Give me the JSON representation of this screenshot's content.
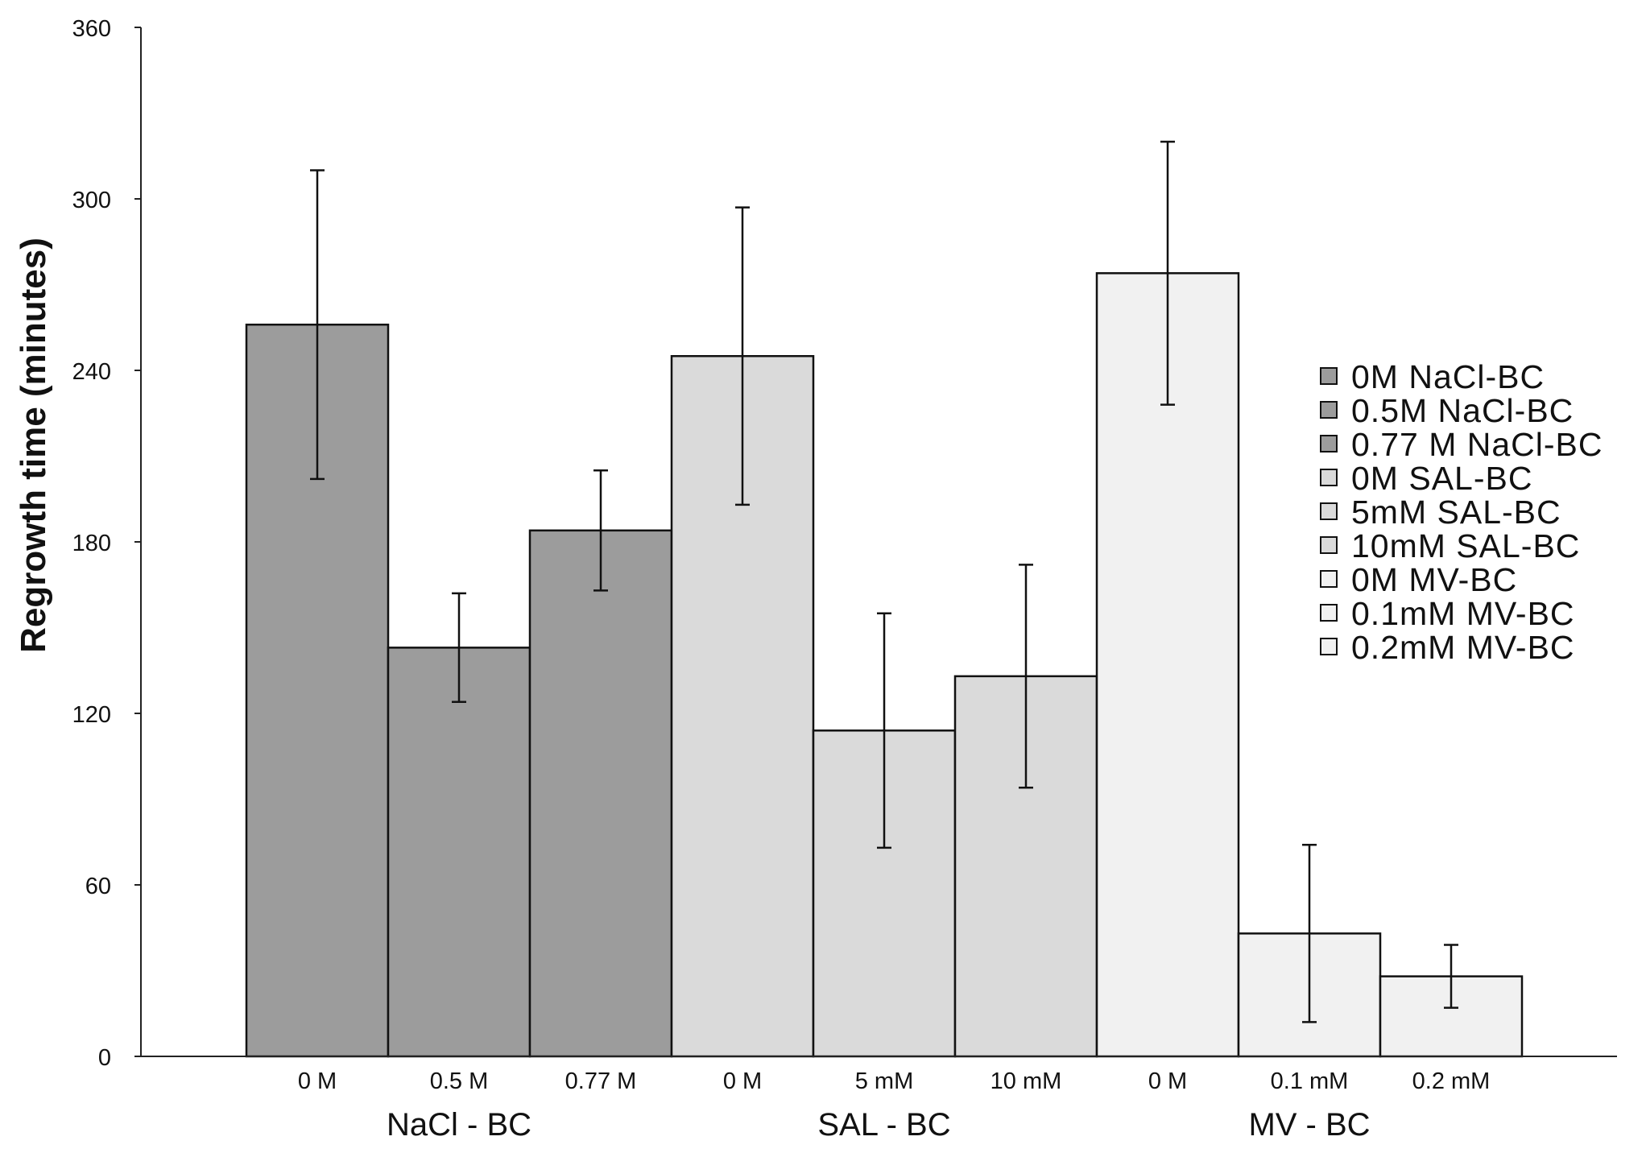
{
  "chart_data": {
    "type": "bar",
    "title": "",
    "xlabel": "",
    "ylabel": "Regrowth time (minutes)",
    "ylim": [
      0,
      360
    ],
    "yticks": [
      0,
      60,
      120,
      180,
      240,
      300,
      360
    ],
    "grid": false,
    "legend_position": "right",
    "groups": [
      {
        "label": "NaCl - BC",
        "color": "#9c9c9c",
        "categories": [
          "0 M",
          "0.5 M",
          "0.77 M"
        ],
        "values": [
          256,
          143,
          184
        ],
        "errors": [
          54,
          19,
          21
        ]
      },
      {
        "label": "SAL - BC",
        "color": "#dadada",
        "categories": [
          "0 M",
          "5 mM",
          "10 mM"
        ],
        "values": [
          245,
          114,
          133
        ],
        "errors": [
          52,
          41,
          39
        ]
      },
      {
        "label": "MV - BC",
        "color": "#f1f1f1",
        "categories": [
          "0 M",
          "0.1 mM",
          "0.2 mM"
        ],
        "values": [
          274,
          43,
          28
        ],
        "errors": [
          46,
          31,
          11
        ]
      }
    ],
    "legend": [
      {
        "label": "0M NaCl-BC",
        "color": "#9c9c9c"
      },
      {
        "label": "0.5M NaCl-BC",
        "color": "#9c9c9c"
      },
      {
        "label": "0.77 M NaCl-BC",
        "color": "#9c9c9c"
      },
      {
        "label": "0M SAL-BC",
        "color": "#dadada"
      },
      {
        "label": "5mM SAL-BC",
        "color": "#dadada"
      },
      {
        "label": "10mM SAL-BC",
        "color": "#dadada"
      },
      {
        "label": "0M MV-BC",
        "color": "#f1f1f1"
      },
      {
        "label": "0.1mM MV-BC",
        "color": "#f1f1f1"
      },
      {
        "label": "0.2mM MV-BC",
        "color": "#f1f1f1"
      }
    ]
  }
}
